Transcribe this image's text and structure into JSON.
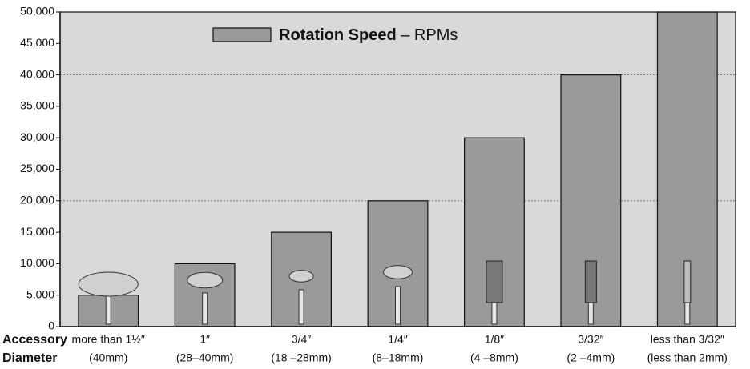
{
  "chart_data": {
    "type": "bar",
    "row_labels": [
      "Accessory",
      "Diameter"
    ],
    "categories": [
      "more than 1½″",
      "1″",
      "3/4″",
      "1/4″",
      "1/8″",
      "3/32″",
      "less than 3/32″"
    ],
    "category_sublabels": [
      "(40mm)",
      "(28–40mm)",
      "(18 –28mm)",
      "(8–18mm)",
      "(4 –8mm)",
      "(2 –4mm)",
      "(less than 2mm)"
    ],
    "series": [
      {
        "name": "Rotation Speed",
        "name_suffix": "– RPMs",
        "color": "#9a9a9a",
        "values": [
          5000,
          10000,
          15000,
          20000,
          30000,
          40000,
          50000
        ]
      }
    ],
    "ylim": [
      0,
      50000
    ],
    "yticks": [
      0,
      {
        "value": 5000,
        "label": "5,000"
      },
      {
        "value": 10000,
        "label": "10,000"
      },
      {
        "value": 15000,
        "label": "15,000"
      },
      {
        "value": 20000,
        "label": "20,000"
      },
      {
        "value": 25000,
        "label": "25,000"
      },
      {
        "value": 30000,
        "label": "30,000"
      },
      {
        "value": 35000,
        "label": "35,000"
      },
      {
        "value": 40000,
        "label": "40,000"
      },
      {
        "value": 45000,
        "label": "45,000"
      },
      {
        "value": 50000,
        "label": "50,000"
      }
    ],
    "gridlines": [
      20000,
      40000
    ],
    "background": "#d9d9d9"
  }
}
